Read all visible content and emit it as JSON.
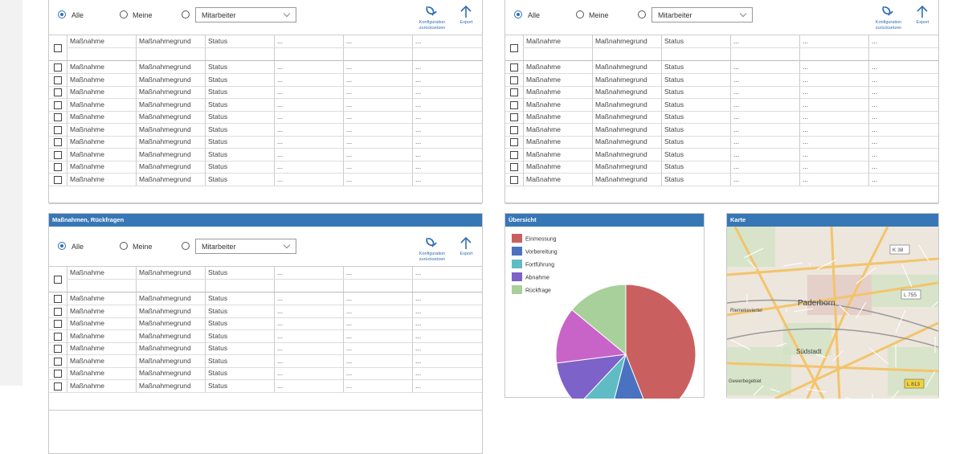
{
  "panels": [
    {
      "filters": {
        "all": "Alle",
        "mine": "Meine",
        "staff": "Mitarbeiter"
      },
      "actions": {
        "reset": "Konfiguration zurücksetzen",
        "export": "Export"
      },
      "columns": [
        "Maßnahme",
        "Maßnahmegrund",
        "Status",
        "...",
        "...",
        "..."
      ],
      "rows": [
        [
          "Maßnahme",
          "Maßnahmegrund",
          "Status",
          "...",
          "...",
          "..."
        ],
        [
          "Maßnahme",
          "Maßnahmegrund",
          "Status",
          "...",
          "...",
          "..."
        ],
        [
          "Maßnahme",
          "Maßnahmegrund",
          "Status",
          "...",
          "...",
          "..."
        ],
        [
          "Maßnahme",
          "Maßnahmegrund",
          "Status",
          "...",
          "...",
          "..."
        ],
        [
          "Maßnahme",
          "Maßnahmegrund",
          "Status",
          "...",
          "...",
          "..."
        ],
        [
          "Maßnahme",
          "Maßnahmegrund",
          "Status",
          "...",
          "...",
          "..."
        ],
        [
          "Maßnahme",
          "Maßnahmegrund",
          "Status",
          "...",
          "...",
          "..."
        ],
        [
          "Maßnahme",
          "Maßnahmegrund",
          "Status",
          "...",
          "...",
          "..."
        ],
        [
          "Maßnahme",
          "Maßnahmegrund",
          "Status",
          "...",
          "...",
          "..."
        ],
        [
          "Maßnahme",
          "Maßnahmegrund",
          "Status",
          "...",
          "...",
          "..."
        ]
      ]
    },
    {
      "filters": {
        "all": "Alle",
        "mine": "Meine",
        "staff": "Mitarbeiter"
      },
      "actions": {
        "reset": "Konfiguration zurücksetzen",
        "export": "Export"
      },
      "columns": [
        "Maßnahme",
        "Maßnahmegrund",
        "Status",
        "...",
        "...",
        "..."
      ],
      "rows": [
        [
          "Maßnahme",
          "Maßnahmegrund",
          "Status",
          "...",
          "...",
          "..."
        ],
        [
          "Maßnahme",
          "Maßnahmegrund",
          "Status",
          "...",
          "...",
          "..."
        ],
        [
          "Maßnahme",
          "Maßnahmegrund",
          "Status",
          "...",
          "...",
          "..."
        ],
        [
          "Maßnahme",
          "Maßnahmegrund",
          "Status",
          "...",
          "...",
          "..."
        ],
        [
          "Maßnahme",
          "Maßnahmegrund",
          "Status",
          "...",
          "...",
          "..."
        ],
        [
          "Maßnahme",
          "Maßnahmegrund",
          "Status",
          "...",
          "...",
          "..."
        ],
        [
          "Maßnahme",
          "Maßnahmegrund",
          "Status",
          "...",
          "...",
          "..."
        ],
        [
          "Maßnahme",
          "Maßnahmegrund",
          "Status",
          "...",
          "...",
          "..."
        ],
        [
          "Maßnahme",
          "Maßnahmegrund",
          "Status",
          "...",
          "...",
          "..."
        ],
        [
          "Maßnahme",
          "Maßnahmegrund",
          "Status",
          "...",
          "...",
          "..."
        ]
      ]
    },
    {
      "title": "Maßnahmen, Rückfragen",
      "filters": {
        "all": "Alle",
        "mine": "Meine",
        "staff": "Mitarbeiter"
      },
      "actions": {
        "reset": "Konfiguration zurücksetzen",
        "export": "Export"
      },
      "columns": [
        "Maßnahme",
        "Maßnahmegrund",
        "Status",
        "...",
        "...",
        "..."
      ],
      "rows": [
        [
          "Maßnahme",
          "Maßnahmegrund",
          "Status",
          "...",
          "...",
          "..."
        ],
        [
          "Maßnahme",
          "Maßnahmegrund",
          "Status",
          "...",
          "...",
          "..."
        ],
        [
          "Maßnahme",
          "Maßnahmegrund",
          "Status",
          "...",
          "...",
          "..."
        ],
        [
          "Maßnahme",
          "Maßnahmegrund",
          "Status",
          "...",
          "...",
          "..."
        ],
        [
          "Maßnahme",
          "Maßnahmegrund",
          "Status",
          "...",
          "...",
          "..."
        ],
        [
          "Maßnahme",
          "Maßnahmegrund",
          "Status",
          "...",
          "...",
          "..."
        ],
        [
          "Maßnahme",
          "Maßnahmegrund",
          "Status",
          "...",
          "...",
          "..."
        ],
        [
          "Maßnahme",
          "Maßnahmegrund",
          "Status",
          "...",
          "...",
          "..."
        ]
      ]
    }
  ],
  "chart_data": {
    "type": "pie",
    "title": "Übersicht",
    "categories": [
      "Einmessung",
      "Vorbereitung",
      "Fortführung",
      "Abnahme",
      null,
      "Rückfrage"
    ],
    "values": [
      44,
      10,
      8,
      11,
      13,
      14
    ],
    "colors": [
      "#c9605f",
      "#4a72c0",
      "#5fbcc4",
      "#7c62c9",
      "#c864c8",
      "#a8d09a"
    ]
  },
  "map": {
    "title": "Karte",
    "labels": [
      "Paderborn",
      "K 38",
      "L 755",
      "Südstadt",
      "Riemekeviertel",
      "Gewerbegebiet",
      "L 813"
    ]
  }
}
